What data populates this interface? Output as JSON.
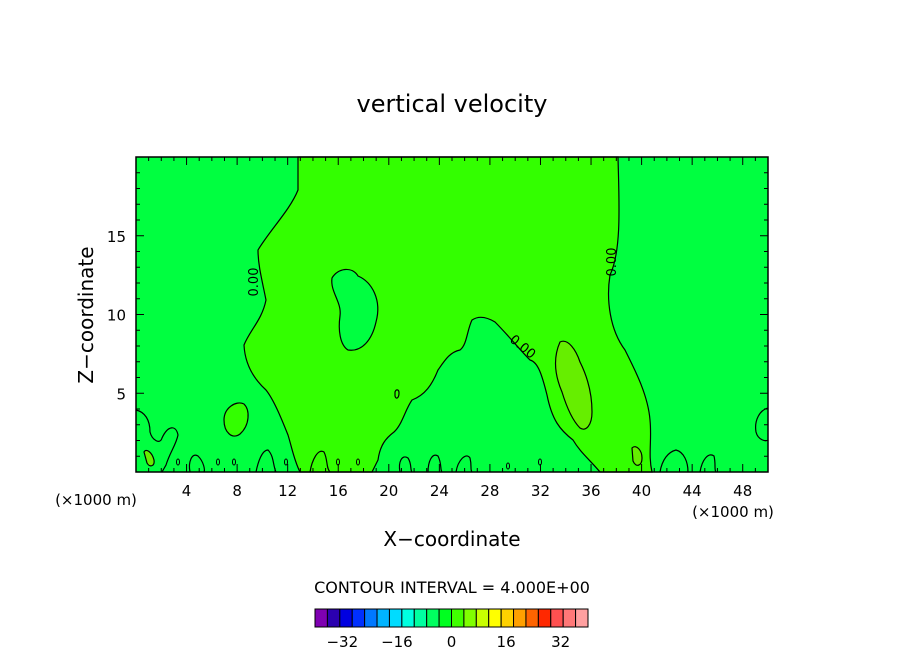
{
  "chart_data": {
    "type": "heatmap",
    "title": "vertical velocity",
    "xlabel": "X−coordinate",
    "ylabel": "Z−coordinate",
    "x_unit_left": "(×1000 m)",
    "x_unit_right": "(×1000 m)",
    "xlim": [
      0,
      50
    ],
    "ylim": [
      0,
      20
    ],
    "x_ticks": [
      4,
      8,
      12,
      16,
      20,
      24,
      28,
      32,
      36,
      40,
      44,
      48
    ],
    "y_ticks": [
      5,
      10,
      15
    ],
    "contour_interval_label": "CONTOUR INTERVAL = 4.000E+00",
    "contour_line_labels": [
      "0.00",
      "0.00",
      "0.00"
    ],
    "colorbar": {
      "ticks": [
        "−32",
        "−16",
        "0",
        "16",
        "32"
      ],
      "tick_values": [
        -32,
        -16,
        0,
        16,
        32
      ],
      "range": [
        -40,
        40
      ],
      "colors": [
        "#7f00b2",
        "#2b00b0",
        "#0000e0",
        "#0030ff",
        "#0078ff",
        "#00b4ff",
        "#00dcff",
        "#00ffe0",
        "#00ffa0",
        "#00ff60",
        "#00ff20",
        "#40ff00",
        "#80ff00",
        "#c8ff00",
        "#ffff00",
        "#ffd200",
        "#ffa000",
        "#ff6400",
        "#ff2800",
        "#ff5050",
        "#ff7878",
        "#ffa0a0"
      ]
    },
    "field_colors": {
      "negative_small": "#00ff40",
      "positive_small": "#33ff00",
      "positive_medium": "#66ee00"
    }
  }
}
